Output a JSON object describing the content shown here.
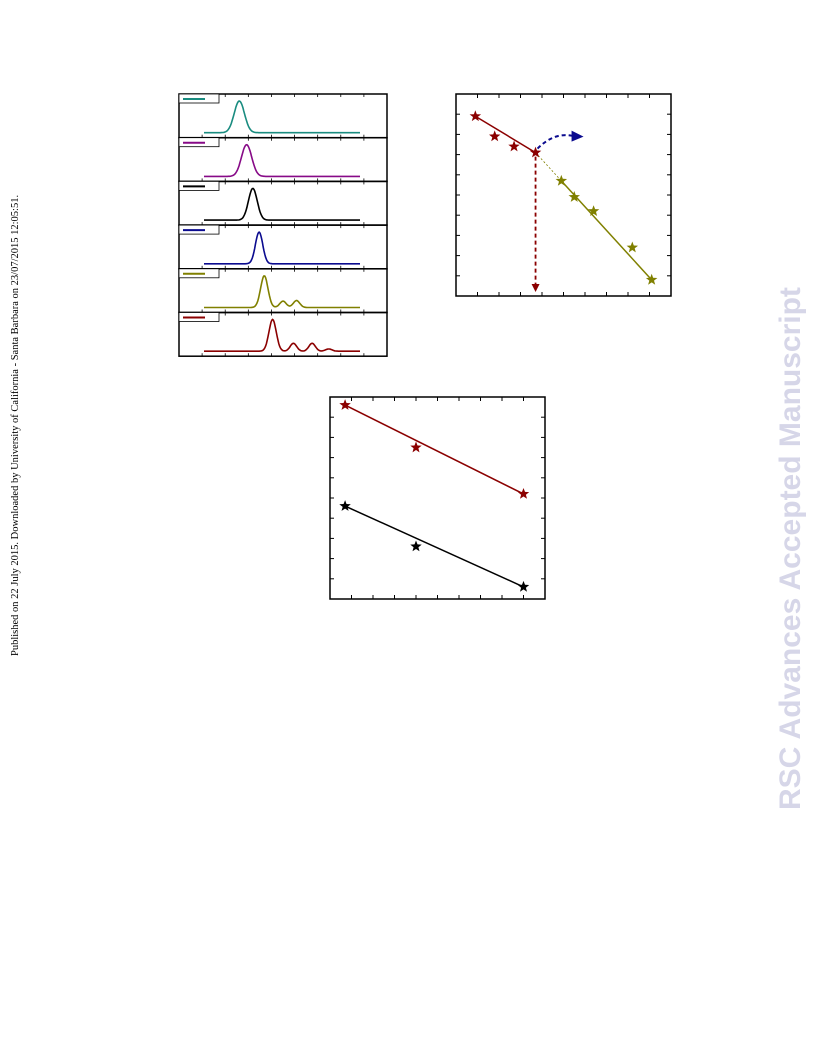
{
  "side_note": "Published on 22 July 2015. Downloaded by University of California - Santa Barbara on 23/07/2015 12:05:51.",
  "watermark": "RSC Advances Accepted Manuscript",
  "colors": {
    "teal": "#1a8c80",
    "purple": "#870a87",
    "black": "#000000",
    "navy": "#0b0b8f",
    "olive": "#808000",
    "darkred": "#8b0000",
    "watermark": "#d6d6e8"
  },
  "chart_data": [
    {
      "type": "line",
      "description_free": true,
      "panels": [
        {
          "color": "teal",
          "peak_x": 0.29,
          "width": 0.035,
          "extra_peaks": []
        },
        {
          "color": "purple",
          "peak_x": 0.325,
          "width": 0.035,
          "extra_peaks": []
        },
        {
          "color": "black",
          "peak_x": 0.355,
          "width": 0.03,
          "extra_peaks": []
        },
        {
          "color": "navy",
          "peak_x": 0.385,
          "width": 0.025,
          "extra_peaks": []
        },
        {
          "color": "olive",
          "peak_x": 0.41,
          "width": 0.025,
          "extra_peaks": [
            {
              "x": 0.5,
              "h": 0.2
            },
            {
              "x": 0.565,
              "h": 0.22
            }
          ]
        },
        {
          "color": "darkred",
          "peak_x": 0.45,
          "width": 0.025,
          "extra_peaks": [
            {
              "x": 0.55,
              "h": 0.25
            },
            {
              "x": 0.64,
              "h": 0.25
            },
            {
              "x": 0.72,
              "h": 0.07
            }
          ]
        }
      ]
    },
    {
      "type": "scatter",
      "x_range": [
        0,
        1
      ],
      "y_range": [
        0,
        1
      ],
      "series": [
        {
          "color": "darkred",
          "points": [
            [
              0.09,
              0.89
            ],
            [
              0.18,
              0.79
            ],
            [
              0.27,
              0.74
            ],
            [
              0.37,
              0.71
            ]
          ]
        },
        {
          "color": "olive",
          "points": [
            [
              0.49,
              0.57
            ],
            [
              0.55,
              0.49
            ],
            [
              0.64,
              0.42
            ],
            [
              0.82,
              0.24
            ],
            [
              0.91,
              0.08
            ]
          ]
        }
      ],
      "drop_line_x": 0.37,
      "arrow": {
        "color": "navy"
      }
    },
    {
      "type": "scatter",
      "x_range": [
        0,
        1
      ],
      "y_range": [
        0,
        1
      ],
      "series": [
        {
          "color": "darkred",
          "points": [
            [
              0.07,
              0.96
            ],
            [
              0.4,
              0.75
            ],
            [
              0.9,
              0.52
            ]
          ]
        },
        {
          "color": "black",
          "points": [
            [
              0.07,
              0.46
            ],
            [
              0.4,
              0.26
            ],
            [
              0.9,
              0.06
            ]
          ]
        }
      ]
    }
  ]
}
